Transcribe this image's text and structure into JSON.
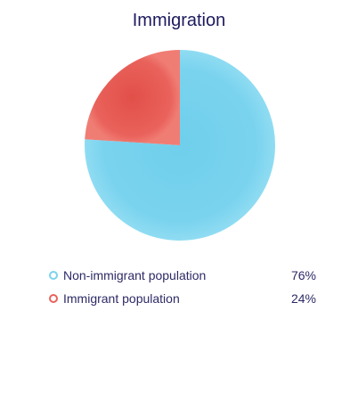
{
  "chart_data": {
    "type": "pie",
    "title": "Immigration",
    "slices": [
      {
        "label": "Non-immigrant population",
        "value": 76,
        "display": "76%",
        "color": "#7ad3ee"
      },
      {
        "label": "Immigrant population",
        "value": 24,
        "display": "24%",
        "color": "#e9625b"
      }
    ]
  }
}
